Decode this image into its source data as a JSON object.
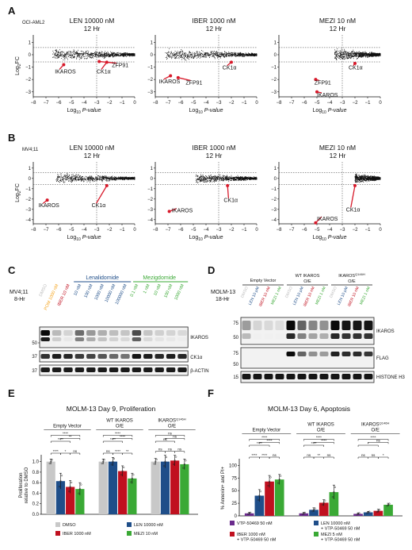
{
  "panels": [
    "A",
    "B",
    "C",
    "D",
    "E",
    "F"
  ],
  "colors": {
    "dmso": "#c8c8c8",
    "len": "#1f4e89",
    "iber": "#c0101f",
    "mezi": "#3aa935",
    "vtp": "#6a2a8c",
    "pom": "#f5a623",
    "point": "#111111",
    "highlight": "#d7192a"
  },
  "chart_data": [
    {
      "panel": "A",
      "type": "scatter",
      "cell_line": "OCI-AML2",
      "xlabel_main": "Log",
      "xlabel_sub": "10",
      "xlabel_tail": " P-value",
      "ylabel_main": "Log",
      "ylabel_sub": "2",
      "ylabel_tail": "FC",
      "xticks": [
        "−8",
        "−7",
        "−6",
        "−5",
        "−4",
        "−3",
        "−2",
        "−1",
        "0"
      ],
      "yticks": [
        "1",
        "0",
        "−1",
        "−2",
        "−3"
      ],
      "xlim": [
        -8,
        0
      ],
      "ylim": [
        -3.4,
        1.6
      ],
      "plots": [
        {
          "title": "LEN 10000 nM",
          "subtitle": "12 Hr",
          "min_x": -6.5,
          "points": [
            {
              "label": "IKAROS",
              "x": -5.6,
              "y": -0.8,
              "lx": -6.3,
              "ly": -1.5
            },
            {
              "label": "ZFP91",
              "x": -2.8,
              "y": -0.55,
              "lx": -1.8,
              "ly": -1.0
            },
            {
              "label": "CK1α",
              "x": -2.2,
              "y": -0.6,
              "lx": -3.0,
              "ly": -1.5
            }
          ]
        },
        {
          "title": "IBER 1000 nM",
          "subtitle": "12 Hr",
          "min_x": -7.2,
          "points": [
            {
              "label": "IKAROS",
              "x": -6.8,
              "y": -1.7,
              "lx": -7.7,
              "ly": -2.3
            },
            {
              "label": "ZFP91",
              "x": -6.2,
              "y": -1.85,
              "lx": -5.6,
              "ly": -2.4
            },
            {
              "label": "CK1α",
              "x": -2.0,
              "y": -0.6,
              "lx": -2.7,
              "ly": -1.2
            }
          ]
        },
        {
          "title": "MEZI 10 nM",
          "subtitle": "12 Hr",
          "min_x": -3.6,
          "points": [
            {
              "label": "ZFP91",
              "x": -5.1,
              "y": -2.0,
              "lx": -5.2,
              "ly": -2.4
            },
            {
              "label": "IKAROS",
              "x": -5.0,
              "y": -3.0,
              "lx": -5.0,
              "ly": -3.4
            },
            {
              "label": "CK1α",
              "x": -2.0,
              "y": -0.7,
              "lx": -2.5,
              "ly": -1.2
            }
          ]
        }
      ]
    },
    {
      "panel": "B",
      "type": "scatter",
      "cell_line": "MV4;11",
      "xlabel_main": "Log",
      "xlabel_sub": "10",
      "xlabel_tail": " P-value",
      "ylabel_main": "Log",
      "ylabel_sub": "2",
      "ylabel_tail": "FC",
      "xticks": [
        "−8",
        "−7",
        "−6",
        "−5",
        "−4",
        "−3",
        "−2",
        "−1",
        "0"
      ],
      "yticks": [
        "1",
        "0",
        "−1",
        "−2",
        "−3",
        "−4"
      ],
      "xlim": [
        -8,
        0
      ],
      "ylim": [
        -4.4,
        1.6
      ],
      "plots": [
        {
          "title": "LEN 10000 nM",
          "subtitle": "12 Hr",
          "min_x": -6.2,
          "points": [
            {
              "label": "IKAROS",
              "x": -6.9,
              "y": -2.1,
              "lx": -7.6,
              "ly": -2.8
            },
            {
              "label": "CK1α",
              "x": -2.2,
              "y": -0.7,
              "lx": -3.4,
              "ly": -2.8
            }
          ]
        },
        {
          "title": "IBER 1000 nM",
          "subtitle": "12 Hr",
          "min_x": -4.8,
          "points": [
            {
              "label": "IKAROS",
              "x": -6.9,
              "y": -3.2,
              "lx": -6.7,
              "ly": -3.3
            },
            {
              "label": "CK1α",
              "x": -2.3,
              "y": -0.7,
              "lx": -2.6,
              "ly": -2.3
            }
          ]
        },
        {
          "title": "MEZI 10 nM",
          "subtitle": "12 Hr",
          "min_x": -2.0,
          "points": [
            {
              "label": "IKAROS",
              "x": -5.1,
              "y": -4.3,
              "lx": -5.0,
              "ly": -4.1
            },
            {
              "label": "CK1α",
              "x": -2.0,
              "y": -0.7,
              "lx": -2.7,
              "ly": -3.2
            }
          ]
        }
      ]
    },
    {
      "panel": "E",
      "type": "bar",
      "title": "MOLM-13 Day 9, Proliferation",
      "ylabel": "Proliferation relative to DMSO",
      "yticks": [
        "0.0",
        "0.2",
        "0.4",
        "0.6",
        "0.8",
        "1.0"
      ],
      "ylim": [
        0,
        1.1
      ],
      "groups": [
        "Empty Vector",
        "WT IKAROS O/E",
        "IKAROS"
      ],
      "group3_label_main": "IKAROS",
      "group3_label_sup": "Q146H",
      "group3_label_line2": "O/E",
      "series": [
        {
          "name": "DMSO",
          "values": [
            1.0,
            1.0,
            1.0
          ],
          "errors": [
            0.05,
            0.05,
            0.06
          ]
        },
        {
          "name": "LEN 10000 nM",
          "values": [
            0.63,
            1.0,
            1.0
          ],
          "errors": [
            0.15,
            0.08,
            0.12
          ]
        },
        {
          "name": "IBER 1000 nM",
          "values": [
            0.52,
            0.82,
            1.02
          ],
          "errors": [
            0.12,
            0.1,
            0.1
          ]
        },
        {
          "name": "MEZI 10 nM",
          "values": [
            0.48,
            0.68,
            0.95
          ],
          "errors": [
            0.12,
            0.1,
            0.1
          ]
        }
      ],
      "sig_brackets": [
        {
          "g": 0,
          "a": 0,
          "b": 3,
          "text": "****",
          "lvl": 4
        },
        {
          "g": 0,
          "a": 0,
          "b": 2,
          "text": "****",
          "lvl": 3
        },
        {
          "g": 0,
          "a": 1,
          "b": 3,
          "text": "**",
          "lvl": 3.5
        },
        {
          "g": 0,
          "a": 0,
          "b": 1,
          "text": "****",
          "lvl": 1
        },
        {
          "g": 0,
          "a": 1,
          "b": 2,
          "text": "*",
          "lvl": 1
        },
        {
          "g": 0,
          "a": 2,
          "b": 3,
          "text": "ns",
          "lvl": 1
        },
        {
          "g": 1,
          "a": 0,
          "b": 3,
          "text": "****",
          "lvl": 4
        },
        {
          "g": 1,
          "a": 0,
          "b": 2,
          "text": "****",
          "lvl": 3
        },
        {
          "g": 1,
          "a": 1,
          "b": 3,
          "text": "****",
          "lvl": 3.5
        },
        {
          "g": 1,
          "a": 0,
          "b": 1,
          "text": "ns",
          "lvl": 1
        },
        {
          "g": 1,
          "a": 1,
          "b": 2,
          "text": "****",
          "lvl": 1
        },
        {
          "g": 1,
          "a": 2,
          "b": 3,
          "text": "**",
          "lvl": 1
        },
        {
          "g": 2,
          "a": 0,
          "b": 3,
          "text": "ns",
          "lvl": 4
        },
        {
          "g": 2,
          "a": 0,
          "b": 2,
          "text": "ns",
          "lvl": 3
        },
        {
          "g": 2,
          "a": 1,
          "b": 3,
          "text": "ns",
          "lvl": 3.5
        },
        {
          "g": 2,
          "a": 0,
          "b": 1,
          "text": "ns",
          "lvl": 1
        },
        {
          "g": 2,
          "a": 1,
          "b": 2,
          "text": "ns",
          "lvl": 1
        },
        {
          "g": 2,
          "a": 2,
          "b": 3,
          "text": "ns",
          "lvl": 1
        }
      ],
      "legend": [
        "DMSO",
        "LEN 10000 nM",
        "IBER 1000 nM",
        "MEZI 10 nM"
      ]
    },
    {
      "panel": "F",
      "type": "bar",
      "title": "MOLM-13 Day 6, Apoptosis",
      "ylabel": "% Annexin+ and PI+",
      "yticks": [
        "0",
        "25",
        "50",
        "75",
        "100"
      ],
      "ylim": [
        0,
        110
      ],
      "groups": [
        "Empty Vector",
        "WT IKAROS O/E",
        "IKAROS"
      ],
      "group3_label_main": "IKAROS",
      "group3_label_sup": "Q146H",
      "group3_label_line2": "O/E",
      "series": [
        {
          "name": "VTP-50469 50 nM",
          "values": [
            5,
            5,
            4
          ],
          "errors": [
            2,
            2,
            2
          ]
        },
        {
          "name": "LEN 10000 nM + VTP-50469 50 nM",
          "values": [
            40,
            12,
            7
          ],
          "errors": [
            12,
            4,
            2
          ]
        },
        {
          "name": "IBER 1000 nM + VTP-50469 50 nM",
          "values": [
            68,
            26,
            10
          ],
          "errors": [
            12,
            6,
            3
          ]
        },
        {
          "name": "MEZI 5 nM + VTP-50469 50 nM",
          "values": [
            72,
            47,
            22
          ],
          "errors": [
            10,
            14,
            3
          ]
        }
      ],
      "sig_brackets": [
        {
          "g": 0,
          "a": 0,
          "b": 3,
          "text": "****",
          "lvl": 4
        },
        {
          "g": 0,
          "a": 0,
          "b": 2,
          "text": "****",
          "lvl": 3
        },
        {
          "g": 0,
          "a": 1,
          "b": 3,
          "text": "****",
          "lvl": 3.5
        },
        {
          "g": 0,
          "a": 0,
          "b": 1,
          "text": "****",
          "lvl": 1
        },
        {
          "g": 0,
          "a": 1,
          "b": 2,
          "text": "****",
          "lvl": 1
        },
        {
          "g": 0,
          "a": 2,
          "b": 3,
          "text": "ns",
          "lvl": 1
        },
        {
          "g": 1,
          "a": 0,
          "b": 3,
          "text": "****",
          "lvl": 4
        },
        {
          "g": 1,
          "a": 0,
          "b": 2,
          "text": "****",
          "lvl": 3
        },
        {
          "g": 1,
          "a": 1,
          "b": 3,
          "text": "****",
          "lvl": 3.5
        },
        {
          "g": 1,
          "a": 0,
          "b": 1,
          "text": "ns",
          "lvl": 1
        },
        {
          "g": 1,
          "a": 1,
          "b": 2,
          "text": "**",
          "lvl": 1
        },
        {
          "g": 1,
          "a": 2,
          "b": 3,
          "text": "ns",
          "lvl": 1
        },
        {
          "g": 2,
          "a": 0,
          "b": 3,
          "text": "****",
          "lvl": 4
        },
        {
          "g": 2,
          "a": 0,
          "b": 2,
          "text": "*",
          "lvl": 3
        },
        {
          "g": 2,
          "a": 1,
          "b": 3,
          "text": "ns",
          "lvl": 3.5
        },
        {
          "g": 2,
          "a": 0,
          "b": 1,
          "text": "ns",
          "lvl": 1
        },
        {
          "g": 2,
          "a": 1,
          "b": 2,
          "text": "ns",
          "lvl": 1
        },
        {
          "g": 2,
          "a": 2,
          "b": 3,
          "text": "*",
          "lvl": 1
        }
      ],
      "legend": [
        "VTP-50469 50 nM",
        "LEN 10000 nM + VTP-50469 50 nM",
        "IBER 1000 nM + VTP-50469 50 nM",
        "MEZI 5 nM + VTP-50469 50 nM"
      ]
    }
  ],
  "blot_c": {
    "cell_line": "MV4;11",
    "time": "8-Hr",
    "group_len": "Lenalidomide",
    "group_mezi": "Mezigdomide",
    "lanes": [
      "DMSO",
      "POM 1000 nM",
      "IBER 10 nM",
      "10 nM",
      "100 nM",
      "1000 nM",
      "10000 nM",
      "100000 nM",
      "0.1 nM",
      "1 nM",
      "10 nM",
      "100 nM",
      "1000 nM"
    ],
    "lane_colors": [
      "#bdbdbd",
      "#f5a623",
      "#c0101f",
      "#1f4e89",
      "#1f4e89",
      "#1f4e89",
      "#1f4e89",
      "#1f4e89",
      "#3aa935",
      "#3aa935",
      "#3aa935",
      "#3aa935",
      "#3aa935"
    ],
    "bands": [
      "IKAROS",
      "CK1α",
      "β-ACTIN"
    ],
    "mw": [
      "50",
      "37",
      "37"
    ],
    "ikaros_level": [
      1.0,
      0.2,
      0.08,
      0.55,
      0.35,
      0.25,
      0.18,
      0.15,
      0.7,
      0.15,
      0.1,
      0.08,
      0.06
    ],
    "ck1_level": [
      0.8,
      0.9,
      0.85,
      0.75,
      0.7,
      0.6,
      0.5,
      0.45,
      0.95,
      0.9,
      0.85,
      0.9,
      0.85
    ]
  },
  "blot_d": {
    "cell_line": "MOLM-13",
    "time": "18-Hr",
    "groups": [
      "Empty Vector",
      "WT IKAROS O/E",
      "IKAROS"
    ],
    "group3_sup": "Q146H",
    "group3_line2": "O/E",
    "lanes": [
      "DMSO",
      "LEN 10 µM",
      "IBER 10 nM",
      "MEZI 1 nM",
      "DMSO",
      "LEN 10 µM",
      "IBER 10 nM",
      "MEZI 1 nM",
      "DMSO",
      "LEN 10 µM",
      "IBER 10 nM",
      "MEZI 1 nM"
    ],
    "lane_colors": [
      "#bdbdbd",
      "#1f4e89",
      "#c0101f",
      "#3aa935",
      "#bdbdbd",
      "#1f4e89",
      "#c0101f",
      "#3aa935",
      "#bdbdbd",
      "#1f4e89",
      "#c0101f",
      "#3aa935"
    ],
    "bands": [
      "IKAROS",
      "FLAG",
      "HISTONE H3"
    ],
    "mw": [
      "75",
      "50",
      "75",
      "50",
      "15"
    ]
  }
}
